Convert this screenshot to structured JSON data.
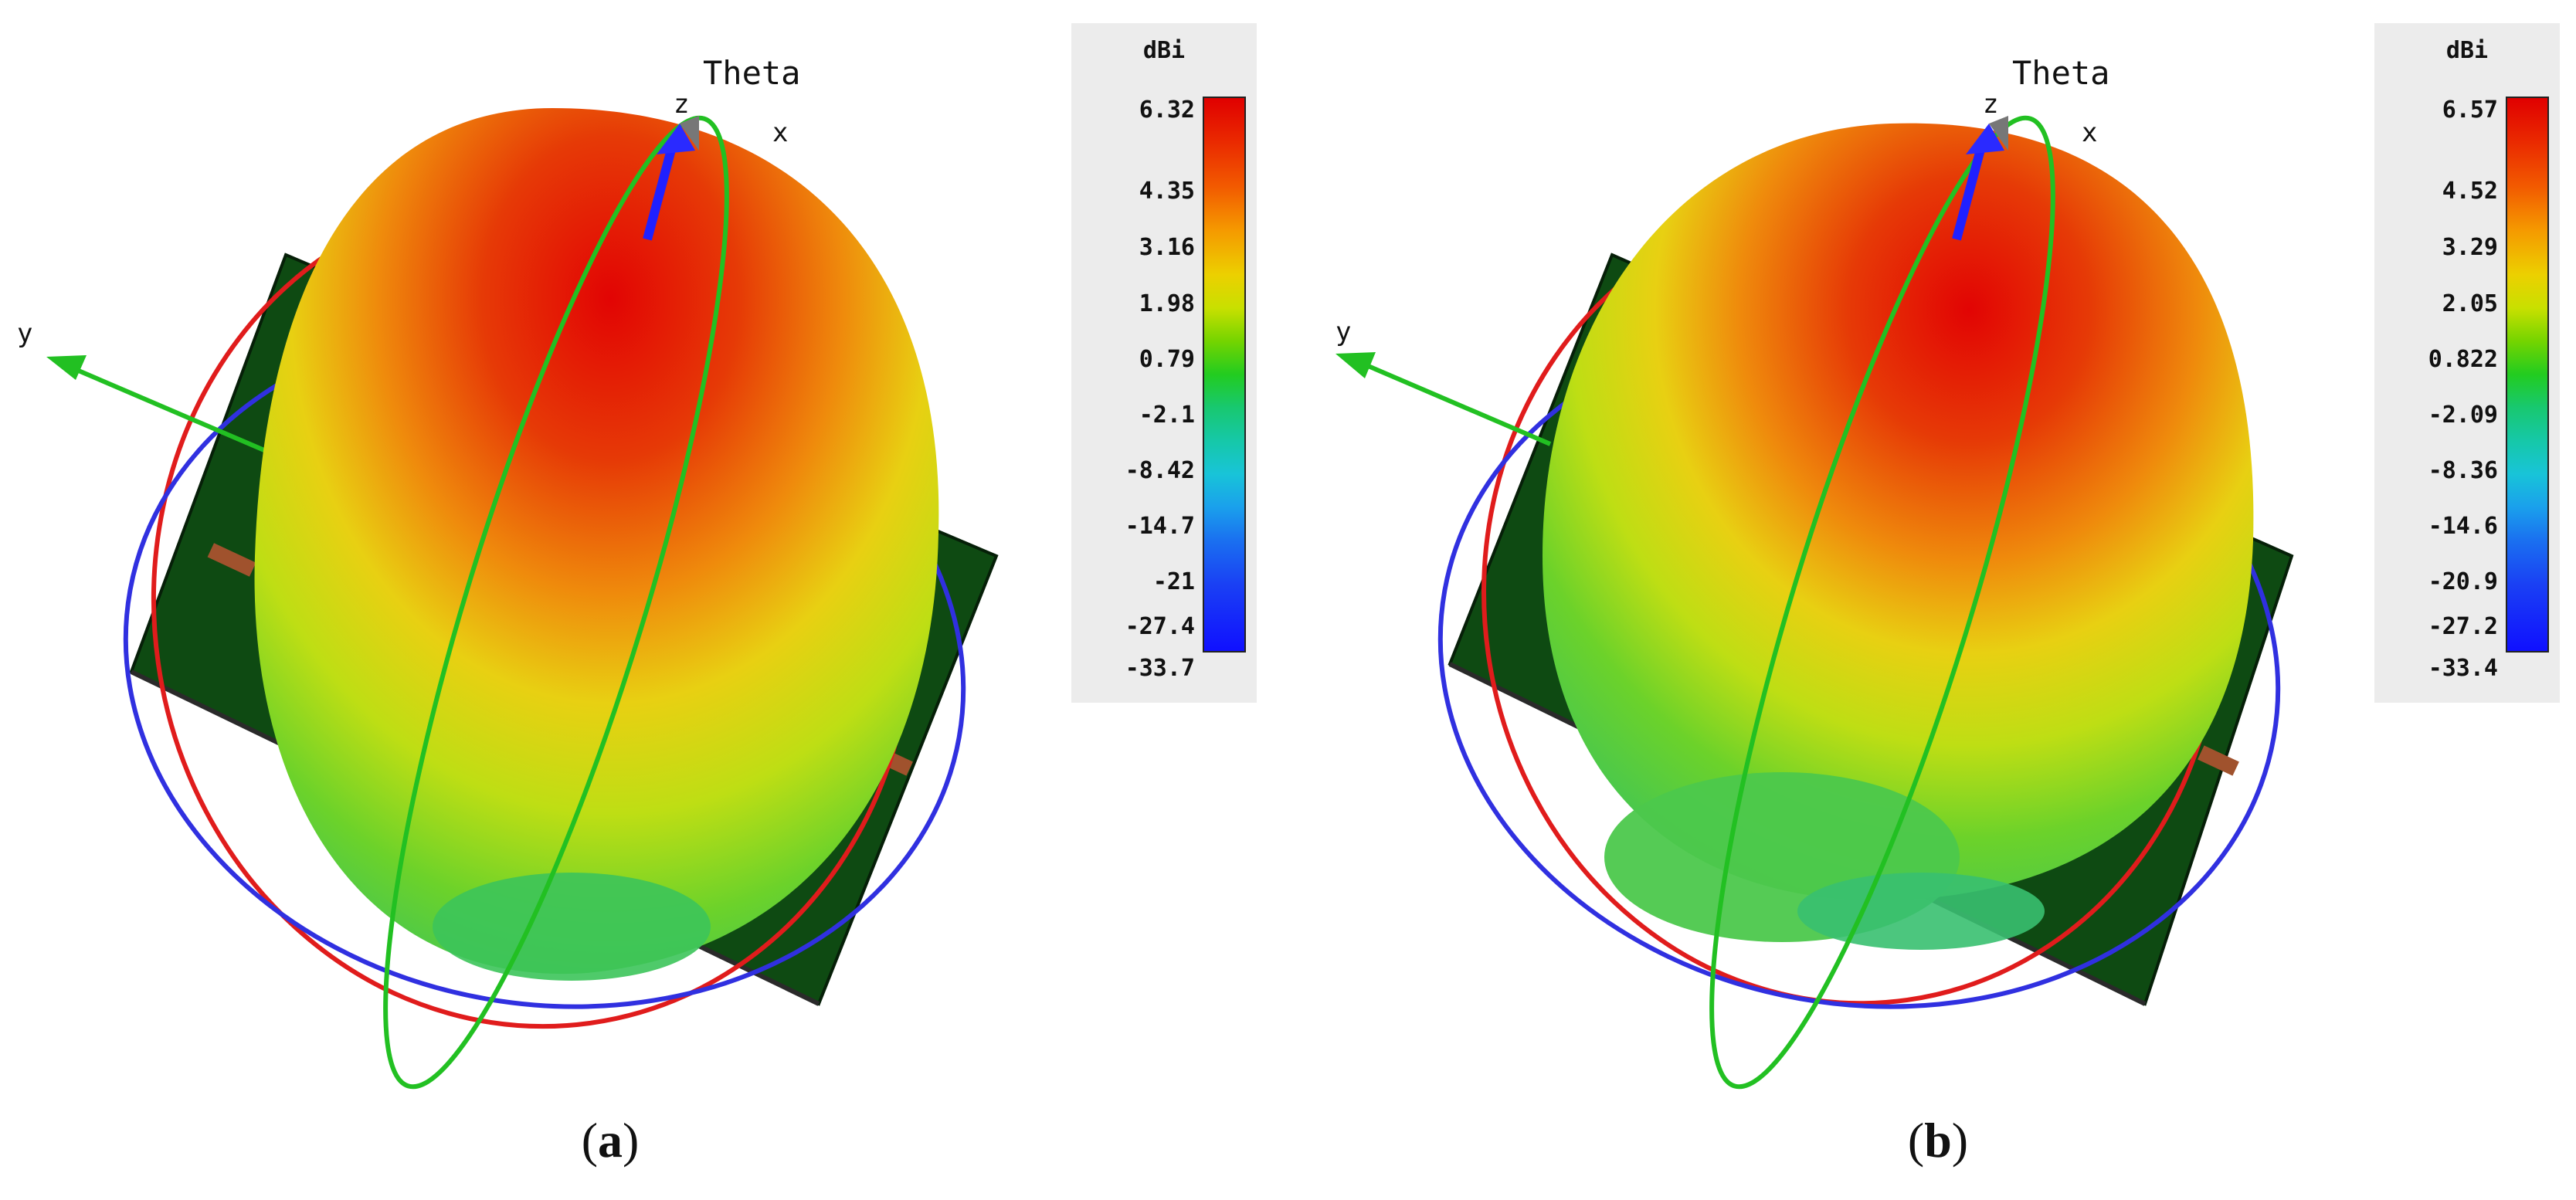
{
  "panels": [
    {
      "id": "a",
      "caption_open": "(",
      "caption_letter": "a",
      "caption_close": ")",
      "axes": {
        "x": "x",
        "y": "y",
        "z": "z",
        "theta": "Theta"
      },
      "colorbar": {
        "unit": "dBi",
        "ticks": [
          "6.32",
          "4.35",
          "3.16",
          "1.98",
          "0.79",
          "-2.1",
          "-8.42",
          "-14.7",
          "-21",
          "-27.4",
          "-33.7"
        ]
      }
    },
    {
      "id": "b",
      "caption_open": "(",
      "caption_letter": "b",
      "caption_close": ")",
      "axes": {
        "x": "x",
        "y": "y",
        "z": "z",
        "theta": "Theta"
      },
      "colorbar": {
        "unit": "dBi",
        "ticks": [
          "6.57",
          "4.52",
          "3.29",
          "2.05",
          "0.822",
          "-2.09",
          "-8.36",
          "-14.6",
          "-20.9",
          "-27.2",
          "-33.4"
        ]
      }
    }
  ],
  "colors": {
    "pattern_max": "#e00000",
    "pattern_mid": "#e8e000",
    "pattern_low": "#3cc83c",
    "substrate": "#0e4a12",
    "phi_ring": "#e01c1c",
    "theta_ring": "#22c022",
    "horizon_ring": "#3030e0"
  }
}
